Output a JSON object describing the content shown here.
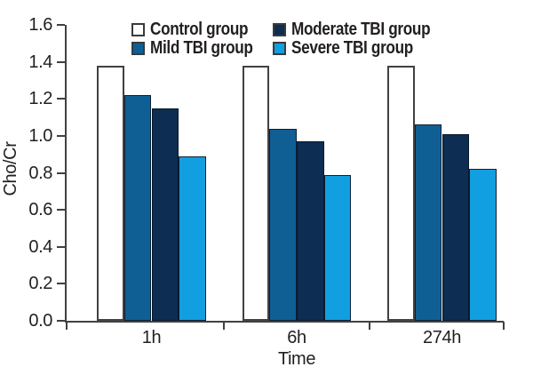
{
  "chart_data": {
    "type": "bar",
    "title": "",
    "xlabel": "Time",
    "ylabel": "Cho/Cr",
    "categories": [
      "1h",
      "6h",
      "274h"
    ],
    "series": [
      {
        "name": "Control group",
        "color": "#ffffff",
        "border": "#414042",
        "values": [
          1.38,
          1.38,
          1.38
        ]
      },
      {
        "name": "Mild TBI group",
        "color": "#0f5f95",
        "border": "#0c2036",
        "values": [
          1.22,
          1.04,
          1.06
        ]
      },
      {
        "name": "Moderate TBI group",
        "color": "#0d2d52",
        "border": "#09182b",
        "values": [
          1.15,
          0.97,
          1.01
        ]
      },
      {
        "name": "Severe TBI group",
        "color": "#129fe1",
        "border": "#0c2036",
        "values": [
          0.89,
          0.79,
          0.82
        ]
      }
    ],
    "ylim": [
      0.0,
      1.6
    ],
    "ytick_step": 0.2,
    "yticks": [
      "0.0",
      "0.2",
      "0.4",
      "0.6",
      "0.8",
      "1.0",
      "1.2",
      "1.4",
      "1.6"
    ],
    "grid": false,
    "legend_position": "top",
    "axis_color": "#414042",
    "text_color": "#231f20"
  }
}
